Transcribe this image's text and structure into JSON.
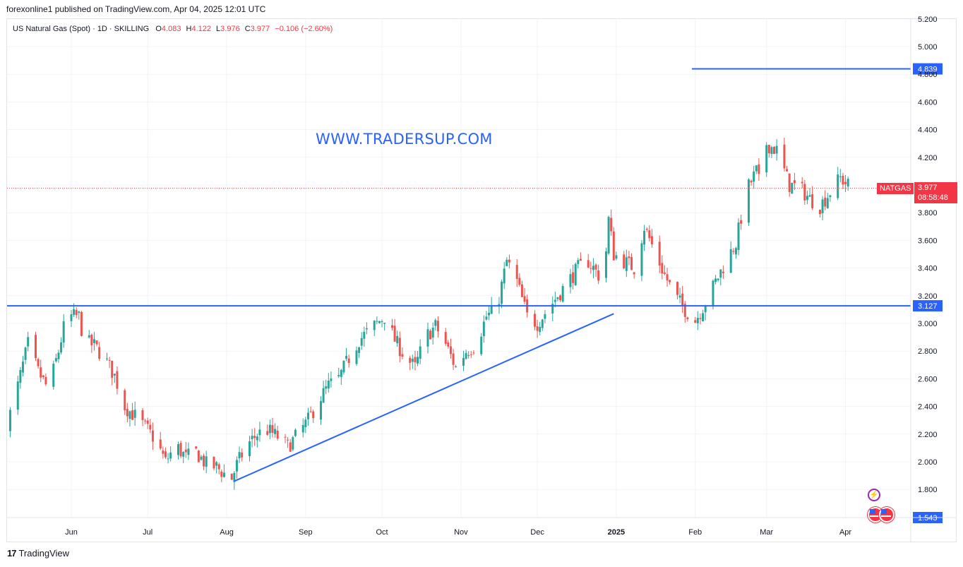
{
  "header": {
    "publisher_line": "forexonline1 published on TradingView.com, Apr 04, 2025 12:01 UTC"
  },
  "legend": {
    "symbol_line": "US Natural Gas (Spot) · 1D · SKILLING",
    "o_label": "O",
    "o_value": "4.083",
    "h_label": "H",
    "h_value": "4.122",
    "l_label": "L",
    "l_value": "3.976",
    "c_label": "C",
    "c_value": "3.977",
    "change": "−0.106 (−2.60%)"
  },
  "watermark": "WWW.TRADERSUP.COM",
  "ticker_tag": "NATGAS",
  "last_price": {
    "value": "3.977",
    "countdown": "08:58:48"
  },
  "footer": {
    "brand": "TradingView",
    "logo_glyph": "17"
  },
  "colors": {
    "up": "#26a69a",
    "down": "#ef5350",
    "line": "#2962ff",
    "grid": "#f0f3fa",
    "text": "#131722"
  },
  "icons": [
    "lightning-event-icon",
    "us-flag-event-icon"
  ],
  "chart_data": {
    "type": "candlestick",
    "y_ticks": [
      "1.800",
      "2.000",
      "2.200",
      "2.400",
      "2.600",
      "2.800",
      "3.000",
      "3.200",
      "3.400",
      "3.600",
      "3.800",
      "4.000",
      "4.200",
      "4.400",
      "4.600",
      "4.800",
      "5.000",
      "5.200"
    ],
    "ylim": [
      1.5,
      5.25
    ],
    "x_ticks": [
      {
        "label": "Jun",
        "day": 0
      },
      {
        "label": "Jul",
        "day": 30
      },
      {
        "label": "Aug",
        "day": 61
      },
      {
        "label": "Sep",
        "day": 92
      },
      {
        "label": "Oct",
        "day": 122
      },
      {
        "label": "Nov",
        "day": 153
      },
      {
        "label": "Dec",
        "day": 183
      },
      {
        "label": "2025",
        "day": 214,
        "bold": true
      },
      {
        "label": "Feb",
        "day": 245
      },
      {
        "label": "Mar",
        "day": 273
      },
      {
        "label": "Apr",
        "day": 304
      }
    ],
    "horizontal_levels": [
      {
        "value": 4.839,
        "label": "4.839"
      },
      {
        "value": 3.127,
        "label": "3.127"
      }
    ],
    "scale_bottom_label": "1.543",
    "trendline": {
      "start": {
        "day": 64,
        "price": 1.86
      },
      "end": {
        "day": 213,
        "price": 3.07
      }
    },
    "anchors": [
      [
        -25,
        2.28
      ],
      [
        -21,
        2.55
      ],
      [
        -17,
        2.85
      ],
      [
        -13,
        2.65
      ],
      [
        -9,
        2.52
      ],
      [
        -5,
        2.8
      ],
      [
        -2,
        3.05
      ],
      [
        1,
        3.05
      ],
      [
        3,
        3.05
      ],
      [
        5,
        2.87
      ],
      [
        9,
        2.84
      ],
      [
        13,
        2.75
      ],
      [
        17,
        2.62
      ],
      [
        21,
        2.4
      ],
      [
        25,
        2.33
      ],
      [
        29,
        2.25
      ],
      [
        33,
        2.16
      ],
      [
        37,
        2.0
      ],
      [
        41,
        2.12
      ],
      [
        45,
        2.03
      ],
      [
        49,
        2.07
      ],
      [
        53,
        1.98
      ],
      [
        57,
        1.96
      ],
      [
        61,
        1.9
      ],
      [
        63,
        1.88
      ],
      [
        65,
        1.98
      ],
      [
        69,
        2.12
      ],
      [
        73,
        2.2
      ],
      [
        77,
        2.23
      ],
      [
        81,
        2.18
      ],
      [
        85,
        2.11
      ],
      [
        89,
        2.2
      ],
      [
        93,
        2.3
      ],
      [
        97,
        2.44
      ],
      [
        101,
        2.55
      ],
      [
        105,
        2.6
      ],
      [
        109,
        2.75
      ],
      [
        113,
        2.88
      ],
      [
        117,
        2.95
      ],
      [
        120,
        3.0
      ],
      [
        123,
        3.05
      ],
      [
        127,
        2.88
      ],
      [
        131,
        2.76
      ],
      [
        135,
        2.68
      ],
      [
        139,
        2.9
      ],
      [
        143,
        2.98
      ],
      [
        147,
        2.85
      ],
      [
        151,
        2.68
      ],
      [
        155,
        2.8
      ],
      [
        159,
        2.85
      ],
      [
        163,
        3.05
      ],
      [
        167,
        3.1
      ],
      [
        171,
        3.45
      ],
      [
        175,
        3.3
      ],
      [
        179,
        3.05
      ],
      [
        183,
        3.0
      ],
      [
        187,
        3.1
      ],
      [
        191,
        3.2
      ],
      [
        195,
        3.3
      ],
      [
        199,
        3.4
      ],
      [
        203,
        3.45
      ],
      [
        207,
        3.35
      ],
      [
        209,
        3.3
      ],
      [
        211,
        3.75
      ],
      [
        213,
        3.5
      ],
      [
        217,
        3.45
      ],
      [
        221,
        3.4
      ],
      [
        225,
        3.7
      ],
      [
        229,
        3.52
      ],
      [
        233,
        3.35
      ],
      [
        237,
        3.2
      ],
      [
        241,
        3.1
      ],
      [
        245,
        3.02
      ],
      [
        249,
        3.15
      ],
      [
        253,
        3.3
      ],
      [
        257,
        3.45
      ],
      [
        261,
        3.58
      ],
      [
        265,
        3.95
      ],
      [
        269,
        4.1
      ],
      [
        271,
        3.95
      ],
      [
        273,
        4.3
      ],
      [
        277,
        4.25
      ],
      [
        279,
        4.15
      ],
      [
        282,
        4.0
      ],
      [
        286,
        3.98
      ],
      [
        290,
        3.9
      ],
      [
        294,
        3.85
      ],
      [
        298,
        3.95
      ],
      [
        302,
        4.05
      ],
      [
        305,
        4.0
      ],
      [
        308,
        3.977
      ]
    ]
  }
}
